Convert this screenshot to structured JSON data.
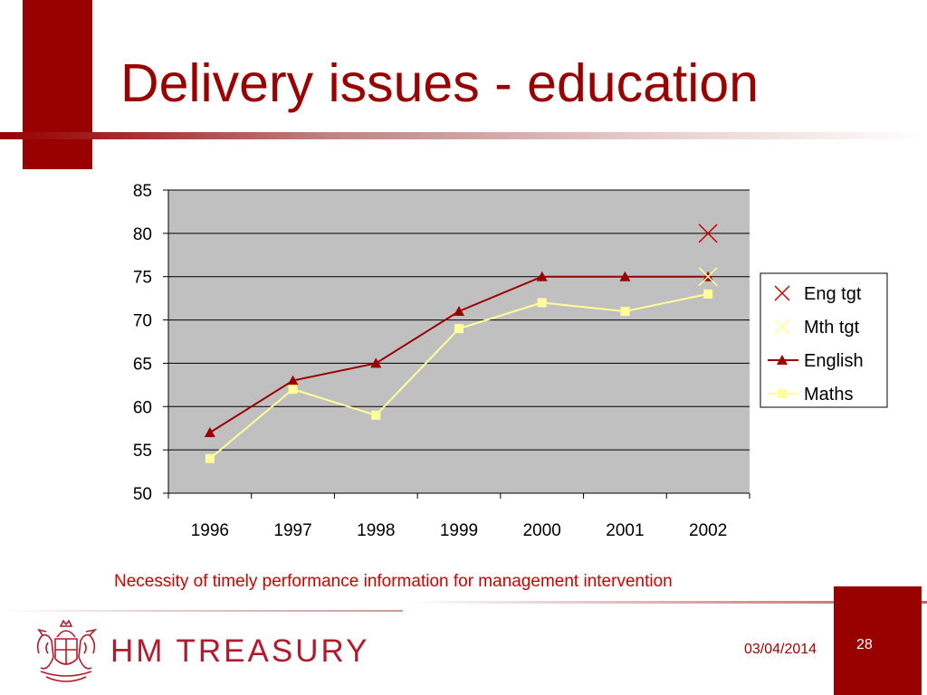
{
  "slide": {
    "title": "Delivery issues - education",
    "caption": "Necessity of timely performance information for management intervention",
    "date": "03/04/2014",
    "page_number": "28",
    "brand": "HM TREASURY"
  },
  "colors": {
    "accent": "#990000",
    "english": "#990000",
    "maths": "#ffff99",
    "eng_tgt": "#cc0000",
    "mth_tgt": "#ffff99",
    "plot_bg": "#c0c0c0"
  },
  "chart_data": {
    "type": "line",
    "categories": [
      "1996",
      "1997",
      "1998",
      "1999",
      "2000",
      "2001",
      "2002"
    ],
    "ylim": [
      50,
      85
    ],
    "yticks": [
      50,
      55,
      60,
      65,
      70,
      75,
      80,
      85
    ],
    "ytick_labels": [
      "50",
      "55",
      "60",
      "65",
      "70",
      "75",
      "80",
      "85"
    ],
    "grid": true,
    "legend_position": "right",
    "series": [
      {
        "name": "Eng tgt",
        "marker": "x",
        "values": [
          null,
          null,
          null,
          null,
          null,
          null,
          80
        ]
      },
      {
        "name": "Mth tgt",
        "marker": "x",
        "values": [
          null,
          null,
          null,
          null,
          null,
          null,
          75
        ]
      },
      {
        "name": "English",
        "marker": "triangle",
        "values": [
          57,
          63,
          65,
          71,
          75,
          75,
          75
        ]
      },
      {
        "name": "Maths",
        "marker": "square",
        "values": [
          54,
          62,
          59,
          69,
          72,
          71,
          73
        ]
      }
    ],
    "title": "",
    "xlabel": "",
    "ylabel": ""
  }
}
